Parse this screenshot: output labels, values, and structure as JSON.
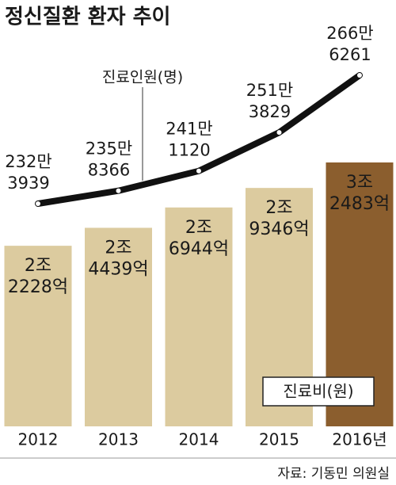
{
  "chart_data": {
    "type": "bar",
    "title": "정신질환 환자 추이",
    "source": "자료: 기동민 의원실",
    "categories": [
      "2012",
      "2013",
      "2014",
      "2015",
      "2016년"
    ],
    "series": [
      {
        "name": "진료비(원)",
        "type": "bar",
        "colors": [
          "#dccb9f",
          "#dccb9f",
          "#dccb9f",
          "#dccb9f",
          "#8b5e2e"
        ],
        "values": [
          22228,
          24439,
          26944,
          29346,
          32483
        ],
        "value_labels": [
          [
            "2조",
            "2228억"
          ],
          [
            "2조",
            "4439억"
          ],
          [
            "2조",
            "6944억"
          ],
          [
            "2조",
            "9346억"
          ],
          [
            "3조",
            "2483억"
          ]
        ]
      },
      {
        "name": "진료인원(명)",
        "type": "line",
        "color": "#111111",
        "values": [
          2323939,
          2358366,
          2411120,
          2513829,
          2666261
        ],
        "value_labels": [
          [
            "232만",
            "3939"
          ],
          [
            "235만",
            "8366"
          ],
          [
            "241만",
            "1120"
          ],
          [
            "251만",
            "3829"
          ],
          [
            "266만",
            "6261"
          ]
        ]
      }
    ]
  }
}
